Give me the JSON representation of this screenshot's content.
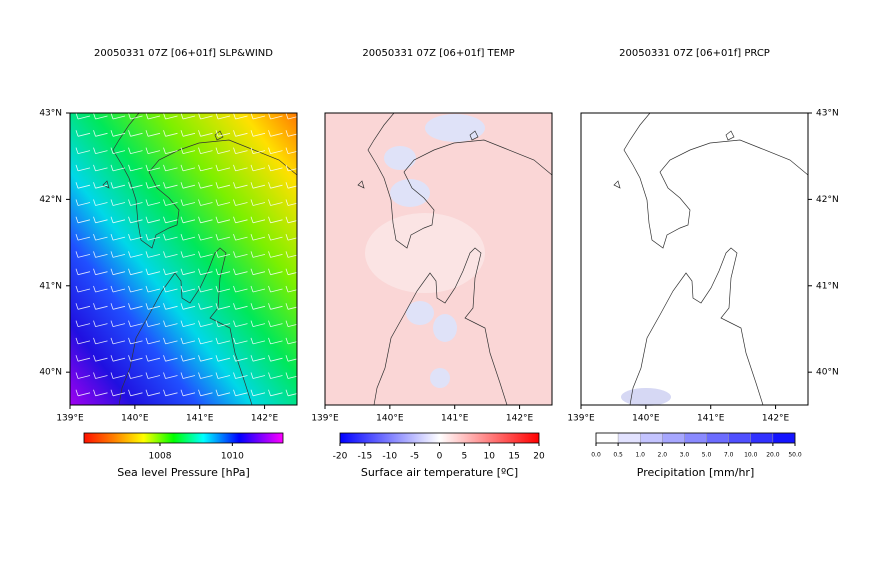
{
  "map": {
    "lonlim": [
      139,
      142.5
    ],
    "latlim": [
      39.62,
      43
    ],
    "lonticks": [
      {
        "value": 139,
        "label": "139°E"
      },
      {
        "value": 140,
        "label": "140°E"
      },
      {
        "value": 141,
        "label": "141°E"
      },
      {
        "value": 142,
        "label": "142°E"
      }
    ],
    "latticks": [
      {
        "value": 43,
        "label": "43°N"
      },
      {
        "value": 42,
        "label": "42°N"
      },
      {
        "value": 41,
        "label": "41°N"
      },
      {
        "value": 40,
        "label": "40°N"
      }
    ],
    "panels": [
      {
        "title": "20050331 07Z [06+01f] SLP&WIND",
        "colorbar": {
          "label": "Sea level Pressure [hPa]",
          "lim": [
            1005.9,
            1011.4
          ],
          "ticks": [
            1008,
            1010
          ]
        }
      },
      {
        "title": "20050331 07Z [06+01f] TEMP",
        "colorbar": {
          "label": "Surface air temperature [ºC]",
          "lim": [
            -20,
            20
          ],
          "ticks": [
            -20,
            -15,
            -10,
            -5,
            0,
            5,
            10,
            15,
            20
          ]
        }
      },
      {
        "title": "20050331 07Z [06+01f] PRCP",
        "colorbar": {
          "label": "Precipitation [mm/hr]",
          "ticks": [
            {
              "value": 0,
              "label": "0.0"
            },
            {
              "value": 0.5,
              "label": "0.5"
            },
            {
              "value": 1,
              "label": "1.0"
            },
            {
              "value": 2,
              "label": "2.0"
            },
            {
              "value": 3,
              "label": "3.0"
            },
            {
              "value": 5,
              "label": "5.0"
            },
            {
              "value": 7,
              "label": "7.0"
            },
            {
              "value": 10,
              "label": "10.0"
            },
            {
              "value": 20,
              "label": "20.0"
            },
            {
              "value": 50,
              "label": "50.0"
            }
          ]
        }
      }
    ]
  }
}
